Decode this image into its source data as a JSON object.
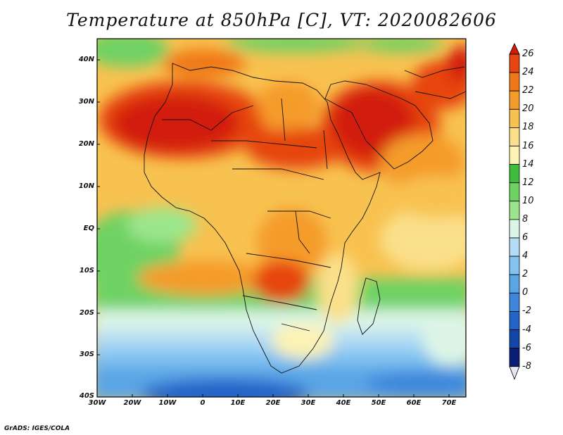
{
  "title": "Temperature at 850hPa [C], VT: 2020082606",
  "credit": "GrADS: IGES/COLA",
  "map": {
    "lon_range": [
      -30,
      75
    ],
    "lat_range": [
      -40,
      45
    ],
    "y_axis_labels": [
      "40N",
      "30N",
      "20N",
      "10N",
      "EQ",
      "10S",
      "20S",
      "30S",
      "40S"
    ],
    "x_axis_labels": [
      "30W",
      "20W",
      "10W",
      "0",
      "10E",
      "20E",
      "30E",
      "40E",
      "50E",
      "60E",
      "70E"
    ]
  },
  "colorbar": {
    "labels": [
      "26",
      "24",
      "22",
      "20",
      "18",
      "16",
      "14",
      "12",
      "10",
      "8",
      "6",
      "4",
      "2",
      "0",
      "-2",
      "-4",
      "-6",
      "-8"
    ],
    "colors": [
      "#d21c08",
      "#e64510",
      "#f07818",
      "#f59b2c",
      "#f8c250",
      "#fae08a",
      "#fcf2b4",
      "#3cbe3c",
      "#6ed263",
      "#9be68c",
      "#dcf5e6",
      "#b4dcf5",
      "#82c3f0",
      "#5aa5e6",
      "#3c87dc",
      "#2364c8",
      "#1446aa",
      "#0a1e78",
      "#e6e6f5"
    ]
  }
}
